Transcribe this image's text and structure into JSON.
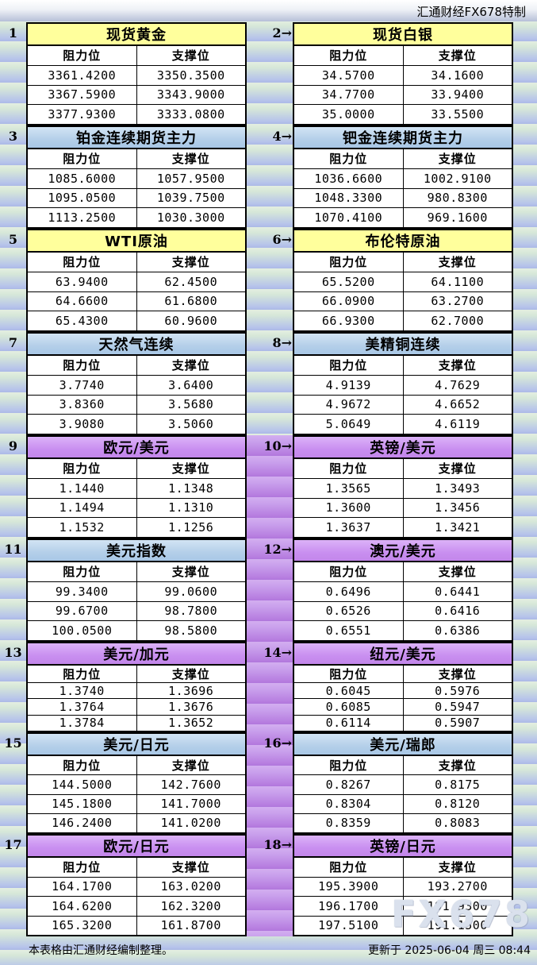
{
  "header": {
    "brand": "汇通财经FX678特制"
  },
  "labels": {
    "resistance": "阻力位",
    "support": "支撑位",
    "arrow": "→"
  },
  "colors": {
    "title_yellow": "#ffff9c",
    "title_blue": "#b4cfe9",
    "title_purple": "#c98ff0",
    "stripe_green": "#d6e7d8",
    "stripe_blue": "#abb9e7",
    "stripe_purple": "#b77ee0"
  },
  "panels": [
    {
      "no": "1",
      "title": "现货黄金",
      "theme": "yellow",
      "resistance": [
        "3361.4200",
        "3367.5900",
        "3377.9300"
      ],
      "support": [
        "3350.3500",
        "3343.9000",
        "3333.0800"
      ]
    },
    {
      "no": "2",
      "title": "现货白银",
      "theme": "yellow",
      "resistance": [
        "34.5700",
        "34.7700",
        "35.0000"
      ],
      "support": [
        "34.1600",
        "33.9400",
        "33.5500"
      ]
    },
    {
      "no": "3",
      "title": "铂金连续期货主力",
      "theme": "blue",
      "resistance": [
        "1085.6000",
        "1095.0500",
        "1113.2500"
      ],
      "support": [
        "1057.9500",
        "1039.7500",
        "1030.3000"
      ]
    },
    {
      "no": "4",
      "title": "钯金连续期货主力",
      "theme": "blue",
      "resistance": [
        "1036.6600",
        "1048.3300",
        "1070.4100"
      ],
      "support": [
        "1002.9100",
        "980.8300",
        "969.1600"
      ]
    },
    {
      "no": "5",
      "title": "WTI原油",
      "theme": "yellow",
      "resistance": [
        "63.9400",
        "64.6600",
        "65.4300"
      ],
      "support": [
        "62.4500",
        "61.6800",
        "60.9600"
      ]
    },
    {
      "no": "6",
      "title": "布伦特原油",
      "theme": "yellow",
      "resistance": [
        "65.5200",
        "66.0900",
        "66.9300"
      ],
      "support": [
        "64.1100",
        "63.2700",
        "62.7000"
      ]
    },
    {
      "no": "7",
      "title": "天然气连续",
      "theme": "blue",
      "resistance": [
        "3.7740",
        "3.8360",
        "3.9080"
      ],
      "support": [
        "3.6400",
        "3.5680",
        "3.5060"
      ]
    },
    {
      "no": "8",
      "title": "美精铜连续",
      "theme": "blue",
      "resistance": [
        "4.9139",
        "4.9672",
        "5.0649"
      ],
      "support": [
        "4.7629",
        "4.6652",
        "4.6119"
      ]
    },
    {
      "no": "9",
      "title": "欧元/美元",
      "theme": "purple",
      "resistance": [
        "1.1440",
        "1.1494",
        "1.1532"
      ],
      "support": [
        "1.1348",
        "1.1310",
        "1.1256"
      ]
    },
    {
      "no": "10",
      "title": "英镑/美元",
      "theme": "purple",
      "resistance": [
        "1.3565",
        "1.3600",
        "1.3637"
      ],
      "support": [
        "1.3493",
        "1.3456",
        "1.3421"
      ]
    },
    {
      "no": "11",
      "title": "美元指数",
      "theme": "blue",
      "resistance": [
        "99.3400",
        "99.6700",
        "100.0500"
      ],
      "support": [
        "99.0600",
        "98.7800",
        "98.5800"
      ]
    },
    {
      "no": "12",
      "title": "澳元/美元",
      "theme": "purple",
      "resistance": [
        "0.6496",
        "0.6526",
        "0.6551"
      ],
      "support": [
        "0.6441",
        "0.6416",
        "0.6386"
      ]
    },
    {
      "no": "13",
      "title": "美元/加元",
      "theme": "purple",
      "resistance": [
        "1.3740",
        "1.3764",
        "1.3784"
      ],
      "support": [
        "1.3696",
        "1.3676",
        "1.3652"
      ]
    },
    {
      "no": "14",
      "title": "纽元/美元",
      "theme": "purple",
      "resistance": [
        "0.6045",
        "0.6085",
        "0.6114"
      ],
      "support": [
        "0.5976",
        "0.5947",
        "0.5907"
      ]
    },
    {
      "no": "15",
      "title": "美元/日元",
      "theme": "blue",
      "resistance": [
        "144.5000",
        "145.1800",
        "146.2400"
      ],
      "support": [
        "142.7600",
        "141.7000",
        "141.0200"
      ]
    },
    {
      "no": "16",
      "title": "美元/瑞郎",
      "theme": "blue",
      "resistance": [
        "0.8267",
        "0.8304",
        "0.8359"
      ],
      "support": [
        "0.8175",
        "0.8120",
        "0.8083"
      ]
    },
    {
      "no": "17",
      "title": "欧元/日元",
      "theme": "purple",
      "resistance": [
        "164.1700",
        "164.6200",
        "165.3200"
      ],
      "support": [
        "163.0200",
        "162.3200",
        "161.8700"
      ]
    },
    {
      "no": "18",
      "title": "英镑/日元",
      "theme": "purple",
      "resistance": [
        "195.3900",
        "196.1700",
        "197.5100"
      ],
      "support": [
        "193.2700",
        "191.9300",
        "191.1500"
      ]
    }
  ],
  "footer": {
    "note": "本表格由汇通财经编制整理。",
    "updated": "更新于 2025-06-04 周三 08:44",
    "watermark": "FX678"
  }
}
